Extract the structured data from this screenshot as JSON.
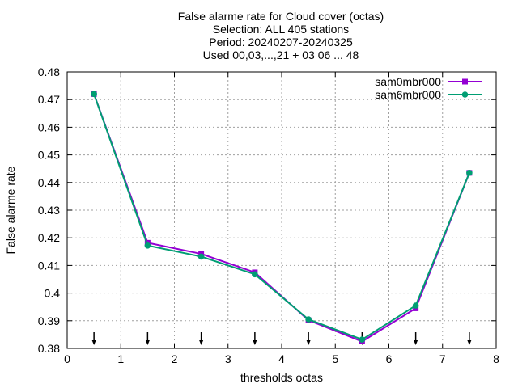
{
  "chart_data": {
    "type": "line",
    "title_lines": [
      "False alarme rate  for Cloud cover (octas)",
      "Selection: ALL    405 stations",
      "Period: 20240207-20240325",
      "Used 00,03,...,21 + 03 06 ... 48"
    ],
    "xlabel": "thresholds octas",
    "ylabel": "False alarme rate",
    "xlim": [
      0,
      8
    ],
    "ylim": [
      0.38,
      0.48
    ],
    "xticks": [
      0,
      1,
      2,
      3,
      4,
      5,
      6,
      7,
      8
    ],
    "yticks": [
      0.38,
      0.39,
      0.4,
      0.41,
      0.42,
      0.43,
      0.44,
      0.45,
      0.46,
      0.47,
      0.48
    ],
    "ytick_labels": [
      "0.38",
      "0.39",
      "0.4",
      "0.41",
      "0.42",
      "0.43",
      "0.44",
      "0.45",
      "0.46",
      "0.47",
      "0.48"
    ],
    "grid": true,
    "legend_position": "top-right",
    "x": [
      0.5,
      1.5,
      2.5,
      3.5,
      4.5,
      5.5,
      6.5,
      7.5
    ],
    "threshold_markers": [
      0.5,
      1.5,
      2.5,
      3.5,
      4.5,
      5.5,
      6.5,
      7.5
    ],
    "series": [
      {
        "name": "sam0mbr000",
        "color": "#9400d3",
        "marker": "square",
        "values": [
          0.472,
          0.4182,
          0.4142,
          0.4075,
          0.3902,
          0.3825,
          0.3945,
          0.4435
        ]
      },
      {
        "name": "sam6mbr000",
        "color": "#009e73",
        "marker": "circle",
        "values": [
          0.472,
          0.4172,
          0.4132,
          0.4068,
          0.3905,
          0.3832,
          0.3955,
          0.4435
        ]
      }
    ]
  }
}
